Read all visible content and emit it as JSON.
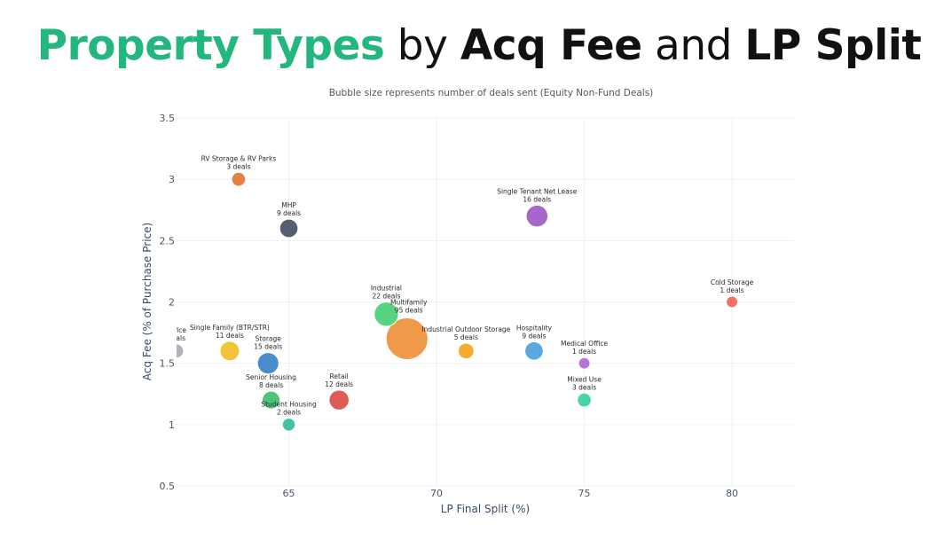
{
  "headline": {
    "part1": "Property Types",
    "part2": " by ",
    "part3": "Acq Fee",
    "part4": " and ",
    "part5": "LP Split"
  },
  "colors": {
    "accent": "#23b67f",
    "grid": "#eef0f4"
  },
  "chart_data": {
    "type": "scatter",
    "title": "Bubble size represents number of deals sent (Equity Non-Fund Deals)",
    "xlabel": "LP Final Split (%)",
    "ylabel": "Acq Fee (% of Purchase Price)",
    "xlim": [
      61.2,
      82.1
    ],
    "ylim": [
      0.5,
      3.5
    ],
    "xticks": [
      65,
      70,
      75,
      80
    ],
    "yticks": [
      0.5,
      1,
      1.5,
      2,
      2.5,
      3,
      3.5
    ],
    "points": [
      {
        "name": "RV Storage & RV Parks",
        "deals_label": "3 deals",
        "x": 63.3,
        "y": 3.0,
        "deals": 3,
        "color": "#e07b39"
      },
      {
        "name": "MHP",
        "deals_label": "9 deals",
        "x": 65.0,
        "y": 2.6,
        "deals": 9,
        "color": "#4a5568"
      },
      {
        "name": "Single Tenant Net Lease",
        "deals_label": "16 deals",
        "x": 73.4,
        "y": 2.7,
        "deals": 16,
        "color": "#a05fc6"
      },
      {
        "name": "Cold Storage",
        "deals_label": "1 deals",
        "x": 80.0,
        "y": 2.0,
        "deals": 1,
        "color": "#ef6c5a"
      },
      {
        "name": "Industrial",
        "deals_label": "22 deals",
        "x": 68.3,
        "y": 1.9,
        "deals": 22,
        "color": "#4fd17a"
      },
      {
        "name": "Multifamily",
        "deals_label": "95 deals",
        "x": 69.0,
        "y": 1.7,
        "deals": 95,
        "color": "#ee9440"
      },
      {
        "name": "Office",
        "deals_label": "deals",
        "x": 61.2,
        "y": 1.6,
        "deals": 3,
        "color": "#a9b0b6"
      },
      {
        "name": "Single Family (BTR/STR)",
        "deals_label": "11 deals",
        "x": 63.0,
        "y": 1.6,
        "deals": 11,
        "color": "#f2c12e"
      },
      {
        "name": "Storage",
        "deals_label": "15 deals",
        "x": 64.3,
        "y": 1.5,
        "deals": 15,
        "color": "#3f86c8"
      },
      {
        "name": "Industrial Outdoor Storage",
        "deals_label": "5 deals",
        "x": 71.0,
        "y": 1.6,
        "deals": 5,
        "color": "#f5a623"
      },
      {
        "name": "Hospitality",
        "deals_label": "9 deals",
        "x": 73.3,
        "y": 1.6,
        "deals": 9,
        "color": "#4fa3e0"
      },
      {
        "name": "Medical Office",
        "deals_label": "1 deals",
        "x": 75.0,
        "y": 1.5,
        "deals": 1,
        "color": "#b36bd6"
      },
      {
        "name": "Senior Housing",
        "deals_label": "8 deals",
        "x": 64.4,
        "y": 1.2,
        "deals": 8,
        "color": "#45c071"
      },
      {
        "name": "Retail",
        "deals_label": "12 deals",
        "x": 66.7,
        "y": 1.2,
        "deals": 12,
        "color": "#d9544d"
      },
      {
        "name": "Student Housing",
        "deals_label": "2 deals",
        "x": 65.0,
        "y": 1.0,
        "deals": 2,
        "color": "#3bbf9e"
      },
      {
        "name": "Mixed Use",
        "deals_label": "3 deals",
        "x": 75.0,
        "y": 1.2,
        "deals": 3,
        "color": "#3fd1a9"
      }
    ]
  }
}
